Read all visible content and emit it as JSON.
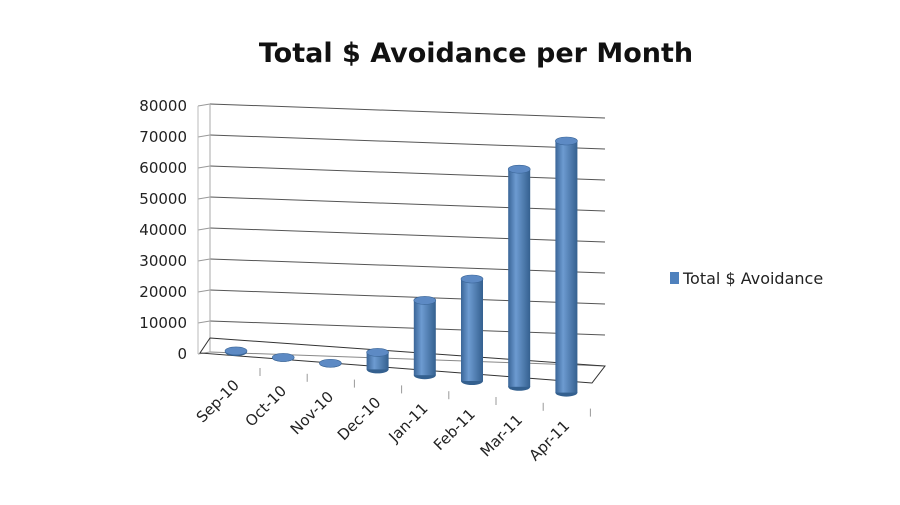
{
  "chart_data": {
    "type": "bar",
    "style": "3d-cylinder",
    "title": "Total $ Avoidance per Month",
    "categories": [
      "Sep-10",
      "Oct-10",
      "Nov-10",
      "Dec-10",
      "Jan-11",
      "Feb-11",
      "Mar-11",
      "Apr-11"
    ],
    "series": [
      {
        "name": "Total $ Avoidance",
        "values": [
          300,
          100,
          100,
          5000,
          22000,
          30000,
          64000,
          74000
        ],
        "color": "#4f81bd"
      }
    ],
    "yticks": [
      "0",
      "10000",
      "20000",
      "30000",
      "40000",
      "50000",
      "60000",
      "70000",
      "80000"
    ],
    "ylim": [
      0,
      80000
    ],
    "grid": true,
    "legend": "right",
    "xlabel": "",
    "ylabel": ""
  }
}
